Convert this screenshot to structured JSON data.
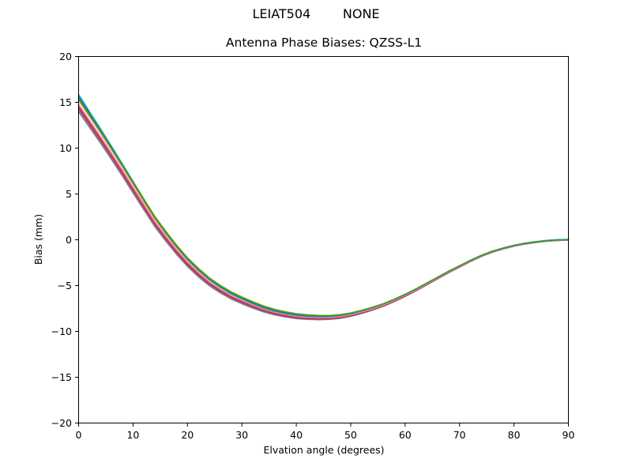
{
  "figure": {
    "suptitle": "LEIAT504        NONE",
    "background_color": "#ffffff",
    "frame_color": "#000000"
  },
  "chart_data": {
    "type": "line",
    "title": "Antenna Phase Biases: QZSS-L1",
    "xlabel": "Elvation angle (degrees)",
    "ylabel": "Bias (mm)",
    "xlim": [
      0,
      90
    ],
    "ylim": [
      -20,
      20
    ],
    "xticks": [
      0,
      10,
      20,
      30,
      40,
      50,
      60,
      70,
      80,
      90
    ],
    "yticks": [
      20,
      15,
      10,
      5,
      0,
      -5,
      -10,
      -15,
      -20
    ],
    "xtick_labels": [
      "0",
      "10",
      "20",
      "30",
      "40",
      "50",
      "60",
      "70",
      "80",
      "90"
    ],
    "ytick_labels": [
      "20",
      "15",
      "10",
      "5",
      "0",
      "−5",
      "−10",
      "−15",
      "−20"
    ],
    "grid": false,
    "legend": null,
    "x": [
      0,
      2,
      4,
      6,
      8,
      10,
      12,
      14,
      16,
      18,
      20,
      22,
      24,
      26,
      28,
      30,
      32,
      34,
      36,
      38,
      40,
      42,
      44,
      46,
      48,
      50,
      52,
      54,
      56,
      58,
      60,
      62,
      64,
      66,
      68,
      70,
      72,
      74,
      76,
      78,
      80,
      82,
      84,
      86,
      88,
      90
    ],
    "mean_bias": [
      14.9,
      13.15,
      11.4,
      9.6,
      7.75,
      5.85,
      3.95,
      2.1,
      0.5,
      -1.0,
      -2.35,
      -3.5,
      -4.5,
      -5.3,
      -6.0,
      -6.55,
      -7.05,
      -7.5,
      -7.85,
      -8.1,
      -8.3,
      -8.4,
      -8.45,
      -8.45,
      -8.35,
      -8.15,
      -7.85,
      -7.5,
      -7.1,
      -6.6,
      -6.05,
      -5.45,
      -4.8,
      -4.15,
      -3.5,
      -2.9,
      -2.3,
      -1.75,
      -1.3,
      -0.95,
      -0.65,
      -0.42,
      -0.25,
      -0.12,
      -0.04,
      0.0
    ],
    "bias_start_range_mm": [
      13.9,
      15.9
    ],
    "bias_min_mm": -8.5,
    "bias_min_elevation_deg": 45,
    "bias_end_mm": 0.0,
    "offset_decay": {
      "floor": 0.04
    },
    "line_width": 1.7,
    "series": [
      {
        "name": "curve-gray",
        "color": "#7f7f7f",
        "offset": -0.9,
        "decay": 2.0
      },
      {
        "name": "curve-purple",
        "color": "#9467bd",
        "offset": -0.7,
        "decay": 2.0
      },
      {
        "name": "curve-brown",
        "color": "#8c564b",
        "offset": -0.5,
        "decay": 1.6
      },
      {
        "name": "curve-red",
        "color": "#d62728",
        "offset": -0.35,
        "decay": 1.6
      },
      {
        "name": "curve-orange",
        "color": "#ff7f0e",
        "offset": 0.35,
        "decay": 3.0
      },
      {
        "name": "curve-olive",
        "color": "#bcbd22",
        "offset": 0.65,
        "decay": 1.8
      },
      {
        "name": "curve-cyan",
        "color": "#17becf",
        "offset": 0.95,
        "decay": 6.0
      },
      {
        "name": "curve-blue",
        "color": "#1f77b4",
        "offset": 0.75,
        "decay": 5.0
      },
      {
        "name": "curve-pink",
        "color": "#e377c2",
        "offset": -0.15,
        "decay": 1.6
      },
      {
        "name": "curve-green",
        "color": "#2ca02c",
        "offset": 0.5,
        "decay": 1.8
      }
    ]
  }
}
